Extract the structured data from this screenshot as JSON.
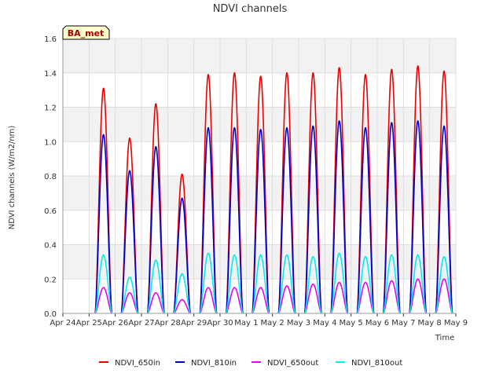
{
  "chart_data": {
    "type": "line",
    "title": "NDVI channels",
    "xlabel": "Time",
    "ylabel": "NDVI channels (W/m2/nm)",
    "badge": "BA_met",
    "ylim": [
      0,
      1.6
    ],
    "yticks": [
      0.0,
      0.2,
      0.4,
      0.6,
      0.8,
      1.0,
      1.2,
      1.4,
      1.6
    ],
    "ytick_labels": [
      "0.0",
      "0.2",
      "0.4",
      "0.6",
      "0.8",
      "1.0",
      "1.2",
      "1.4",
      "1.6"
    ],
    "xlim_days": [
      0,
      15
    ],
    "xtick_labels": [
      "Apr 24",
      "Apr 25",
      "Apr 26",
      "Apr 27",
      "Apr 28",
      "Apr 29",
      "Apr 30",
      "May 1",
      "May 2",
      "May 3",
      "May 4",
      "May 5",
      "May 6",
      "May 7",
      "May 8",
      "May 9"
    ],
    "days": [
      "Apr 25",
      "Apr 26",
      "Apr 27",
      "Apr 28",
      "Apr 29",
      "Apr 30",
      "May 1",
      "May 2",
      "May 3",
      "May 4",
      "May 5",
      "May 6",
      "May 7",
      "May 8"
    ],
    "daily_peak_time": 0.55,
    "daily_half_width": 0.32,
    "colors": {
      "NDVI_650in": "#ee0000",
      "NDVI_810in": "#0000cc",
      "NDVI_650out": "#ee00ee",
      "NDVI_810out": "#00eeee",
      "band": "#f2f2f2",
      "grid": "#dddddd",
      "badge_bg": "#ffffcc"
    },
    "series": [
      {
        "name": "NDVI_650in",
        "daily_peaks": [
          1.31,
          1.02,
          1.22,
          0.81,
          1.39,
          1.4,
          1.38,
          1.4,
          1.4,
          1.43,
          1.39,
          1.42,
          1.44,
          1.41
        ]
      },
      {
        "name": "NDVI_810in",
        "daily_peaks": [
          1.04,
          0.83,
          0.97,
          0.67,
          1.08,
          1.08,
          1.07,
          1.08,
          1.09,
          1.12,
          1.08,
          1.11,
          1.12,
          1.09
        ]
      },
      {
        "name": "NDVI_650out",
        "daily_peaks": [
          0.15,
          0.12,
          0.12,
          0.08,
          0.15,
          0.15,
          0.15,
          0.16,
          0.17,
          0.18,
          0.18,
          0.19,
          0.2,
          0.2
        ]
      },
      {
        "name": "NDVI_810out",
        "daily_peaks": [
          0.34,
          0.21,
          0.31,
          0.23,
          0.35,
          0.34,
          0.34,
          0.34,
          0.33,
          0.35,
          0.33,
          0.34,
          0.34,
          0.33
        ]
      }
    ],
    "legend": [
      "NDVI_650in",
      "NDVI_810in",
      "NDVI_650out",
      "NDVI_810out"
    ],
    "legend_position": "bottom",
    "grid": true
  }
}
